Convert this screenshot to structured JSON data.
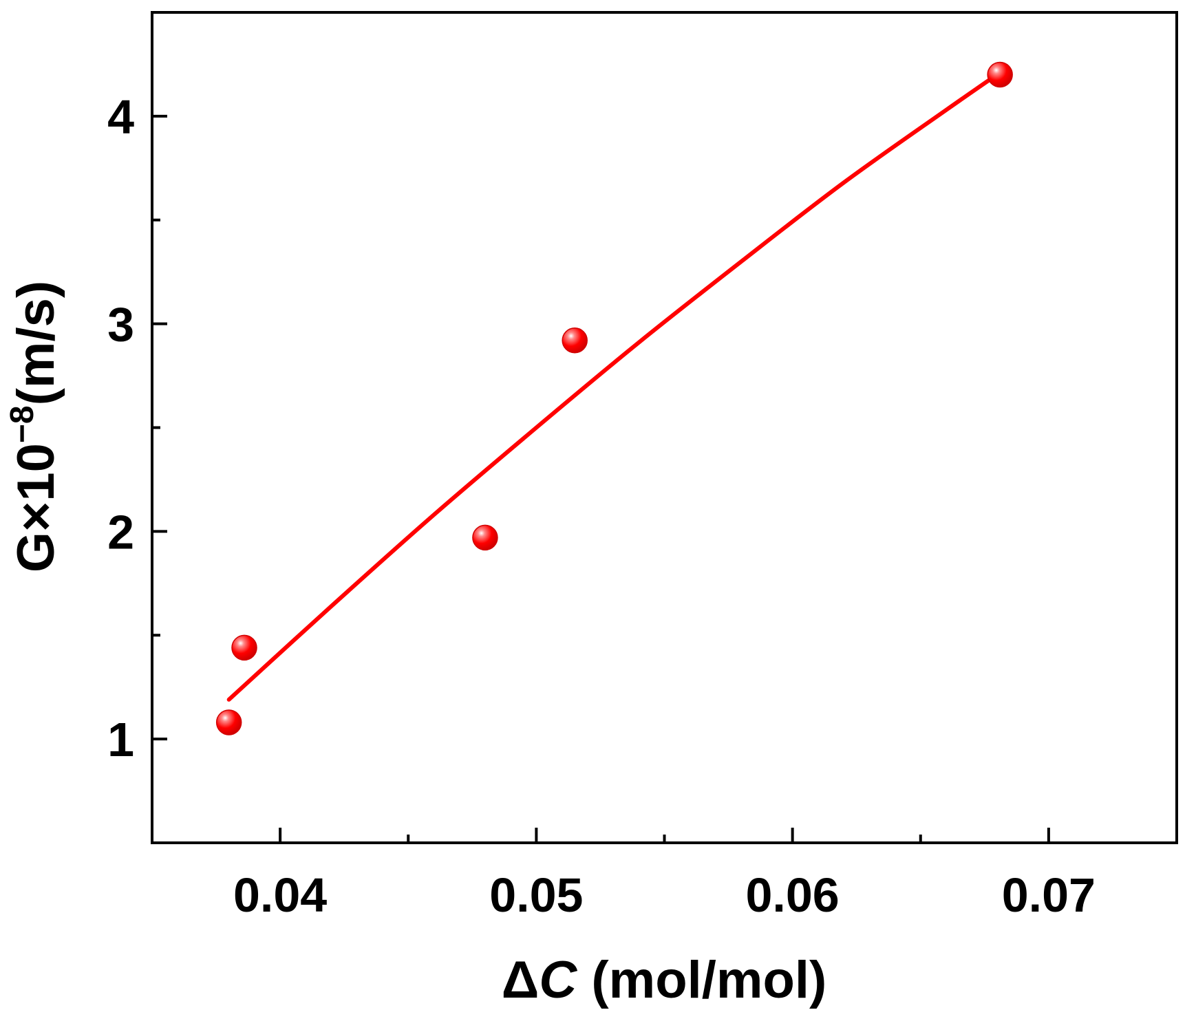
{
  "chart_data": {
    "type": "scatter",
    "title": "",
    "xlabel": "ΔC (mol/mol)",
    "xlabel_parts": {
      "symbol": "Δ",
      "variable": "C",
      "unit": " (mol/mol)"
    },
    "ylabel": "G×10⁻⁸(m/s)",
    "ylabel_parts": {
      "base": "G×10",
      "exponent": "−8",
      "unit": "(m/s)"
    },
    "xlim": [
      0.035,
      0.075
    ],
    "ylim": [
      0.5,
      4.5
    ],
    "x_ticks": [
      0.04,
      0.05,
      0.06,
      0.07
    ],
    "x_tick_labels": [
      "0.04",
      "0.05",
      "0.06",
      "0.07"
    ],
    "x_minor_ticks": [
      0.045,
      0.055,
      0.065
    ],
    "y_ticks": [
      1,
      2,
      3,
      4
    ],
    "y_tick_labels": [
      "1",
      "2",
      "3",
      "4"
    ],
    "y_minor_ticks": [
      1.5,
      2.5,
      3.5
    ],
    "grid": false,
    "series": [
      {
        "kind": "points",
        "color": "#ff0000",
        "x": [
          0.038,
          0.0386,
          0.048,
          0.0515,
          0.0681
        ],
        "y": [
          1.08,
          1.44,
          1.97,
          2.92,
          4.2
        ]
      },
      {
        "kind": "fit-line",
        "color": "#ff0000",
        "x": [
          0.038,
          0.042,
          0.046,
          0.05,
          0.054,
          0.058,
          0.062,
          0.066,
          0.0681
        ],
        "y": [
          1.19,
          1.64,
          2.08,
          2.5,
          2.91,
          3.3,
          3.68,
          4.03,
          4.21
        ]
      }
    ]
  }
}
